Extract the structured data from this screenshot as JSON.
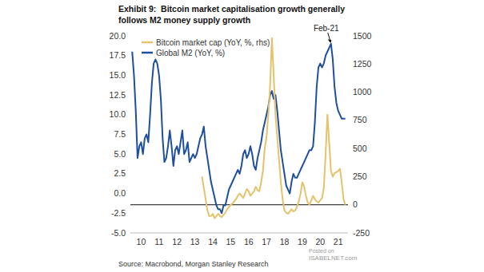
{
  "chart_data": {
    "type": "line",
    "title": "Exhibit 9:  Bitcoin market capitalisation growth generally follows M2 money supply growth",
    "source": "Source: Macrobond, Morgan Stanley Research",
    "watermark": [
      "Posted on",
      "ISABELNET.com"
    ],
    "annotations": [
      {
        "text": "Feb-21",
        "x": 2021.1,
        "y": 19
      }
    ],
    "legend": "upper left",
    "grid": false,
    "x": [
      2010.0,
      2010.1,
      2010.2,
      2010.3,
      2010.4,
      2010.5,
      2010.6,
      2010.7,
      2010.8,
      2010.9,
      2011.0,
      2011.1,
      2011.2,
      2011.3,
      2011.4,
      2011.5,
      2011.6,
      2011.7,
      2011.8,
      2011.9,
      2012.0,
      2012.1,
      2012.2,
      2012.3,
      2012.4,
      2012.5,
      2012.6,
      2012.7,
      2012.8,
      2012.9,
      2013.0,
      2013.1,
      2013.2,
      2013.3,
      2013.4,
      2013.5,
      2013.6,
      2013.7,
      2013.8,
      2013.9,
      2014.0,
      2014.1,
      2014.2,
      2014.3,
      2014.4,
      2014.5,
      2014.6,
      2014.7,
      2014.8,
      2014.9,
      2015.0,
      2015.1,
      2015.2,
      2015.3,
      2015.4,
      2015.5,
      2015.6,
      2015.7,
      2015.8,
      2015.9,
      2016.0,
      2016.1,
      2016.2,
      2016.3,
      2016.4,
      2016.5,
      2016.6,
      2016.7,
      2016.8,
      2016.9,
      2017.0,
      2017.1,
      2017.2,
      2017.3,
      2017.4,
      2017.5,
      2017.6,
      2017.7,
      2017.8,
      2017.9,
      2018.0,
      2018.1,
      2018.2,
      2018.3,
      2018.4,
      2018.5,
      2018.6,
      2018.7,
      2018.8,
      2018.9,
      2019.0,
      2019.1,
      2019.2,
      2019.3,
      2019.4,
      2019.5,
      2019.6,
      2019.7,
      2019.8,
      2019.9,
      2020.0,
      2020.1,
      2020.2,
      2020.3,
      2020.4,
      2020.5,
      2020.6,
      2020.7,
      2020.8,
      2020.9,
      2021.0,
      2021.1,
      2021.2,
      2021.3,
      2021.4,
      2021.5,
      2021.6,
      2021.7,
      2021.8,
      2021.9
    ],
    "xlim": [
      2009.9,
      2022.05
    ],
    "xticks": [
      {
        "value": 2010.5,
        "label": "10"
      },
      {
        "value": 2011.5,
        "label": "11"
      },
      {
        "value": 2012.5,
        "label": "12"
      },
      {
        "value": 2013.5,
        "label": "13"
      },
      {
        "value": 2014.5,
        "label": "14"
      },
      {
        "value": 2015.5,
        "label": "15"
      },
      {
        "value": 2016.5,
        "label": "16"
      },
      {
        "value": 2017.5,
        "label": "17"
      },
      {
        "value": 2018.5,
        "label": "18"
      },
      {
        "value": 2019.5,
        "label": "19"
      },
      {
        "value": 2020.5,
        "label": "20"
      },
      {
        "value": 2021.5,
        "label": "21"
      }
    ],
    "ylim": [
      -5,
      20
    ],
    "yticks": [
      {
        "value": -5,
        "label": "-5.0"
      },
      -2.5,
      {
        "value": 0,
        "label": "0.0"
      },
      2.5,
      {
        "value": 5,
        "label": "5.0"
      },
      7.5,
      {
        "value": 10,
        "label": "10.0"
      },
      12.5,
      {
        "value": 15,
        "label": "15.0"
      },
      17.5,
      {
        "value": 20,
        "label": "20.0"
      }
    ],
    "y2lim": [
      -250,
      1500
    ],
    "y2ticks": [
      -250,
      0,
      250,
      500,
      750,
      1000,
      1250,
      1500
    ],
    "series": [
      {
        "name": "Bitcoin market cap (YoY, %, rhs)",
        "color": "#e5c26b",
        "axis": "y2",
        "values": [
          null,
          null,
          null,
          null,
          null,
          null,
          null,
          null,
          null,
          null,
          null,
          null,
          null,
          null,
          null,
          null,
          null,
          null,
          null,
          null,
          null,
          null,
          null,
          null,
          null,
          null,
          null,
          null,
          null,
          null,
          null,
          null,
          null,
          null,
          null,
          null,
          null,
          null,
          null,
          250,
          150,
          50,
          -50,
          -100,
          -100,
          -80,
          -120,
          -100,
          -80,
          -100,
          -110,
          -90,
          -70,
          -40,
          -20,
          0,
          10,
          30,
          50,
          80,
          100,
          80,
          60,
          100,
          140,
          120,
          80,
          100,
          120,
          160,
          130,
          120,
          200,
          300,
          500,
          600,
          800,
          1050,
          1480,
          1150,
          800,
          600,
          400,
          200,
          50,
          -50,
          -70,
          -80,
          -60,
          -40,
          -60,
          -50,
          -20,
          30,
          100,
          200,
          160,
          80,
          20,
          0,
          40,
          80,
          50,
          30,
          20,
          40,
          60,
          150,
          450,
          800,
          550,
          300,
          250,
          280,
          290,
          300,
          320,
          200,
          50,
          0
        ]
      },
      {
        "name": "Global M2 (YoY, %)",
        "color": "#1f4f9f",
        "values": [
          18,
          15,
          10.5,
          4.5,
          6,
          6.5,
          5,
          7,
          7.5,
          6.5,
          10,
          14,
          16.5,
          17,
          16.5,
          15,
          12,
          7,
          4,
          4.5,
          6,
          8,
          6,
          3.5,
          5.5,
          6,
          5,
          6.5,
          8,
          5,
          5.5,
          6.5,
          4,
          4.5,
          5,
          4.5,
          5,
          6,
          7,
          7.5,
          8.5,
          6,
          4.5,
          3,
          1.5,
          0.5,
          -0.5,
          -1.5,
          -2,
          -2,
          -2.5,
          -1.5,
          -1.5,
          -0.5,
          0.5,
          1,
          1.5,
          2,
          2.5,
          3,
          2.5,
          3.5,
          5,
          5.5,
          4.5,
          5,
          6,
          5,
          3.5,
          3,
          4.5,
          5.5,
          6.5,
          8,
          9,
          10,
          11,
          12.5,
          13,
          12,
          12.5,
          10.5,
          8,
          5.5,
          4,
          2.5,
          1,
          0.5,
          0,
          1.5,
          2.5,
          2,
          2,
          2.5,
          3,
          3.5,
          4,
          4.5,
          5,
          5.5,
          5.5,
          6,
          9,
          13.5,
          16,
          16.5,
          16,
          16.5,
          17.5,
          18,
          18.5,
          19,
          17,
          13.5,
          11.5,
          10.5,
          10,
          9.5,
          9.5,
          9.5
        ]
      }
    ]
  }
}
